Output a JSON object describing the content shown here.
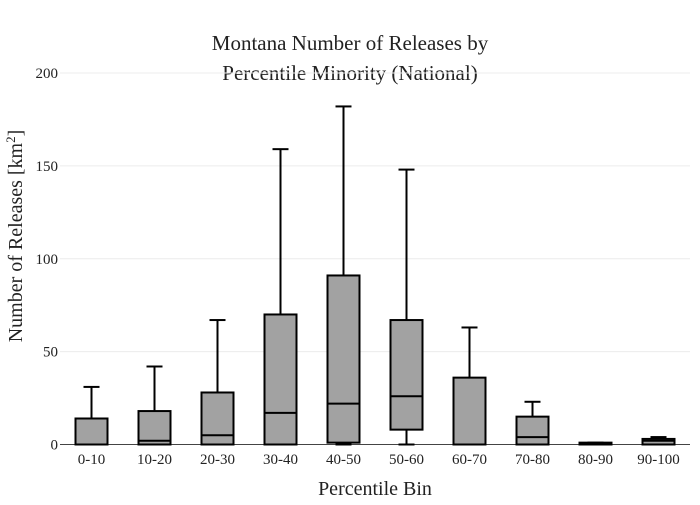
{
  "chart_data": {
    "type": "box",
    "title_lines": [
      "Montana Number of Releases by",
      "Percentile Minority (National)"
    ],
    "xlabel": "Percentile Bin",
    "ylabel_text": "Number of Releases ",
    "ylabel_unit_base": "[km",
    "ylabel_unit_sup": "2",
    "ylabel_unit_end": "]",
    "ylim": [
      0,
      200
    ],
    "yticks": [
      0,
      50,
      100,
      150,
      200
    ],
    "grid": true,
    "categories": [
      "0-10",
      "10-20",
      "20-30",
      "30-40",
      "40-50",
      "50-60",
      "60-70",
      "70-80",
      "80-90",
      "90-100"
    ],
    "boxes": [
      {
        "lower_whisker": 0,
        "q1": 0,
        "median": 0,
        "q3": 14,
        "upper_whisker": 31
      },
      {
        "lower_whisker": 0,
        "q1": 0,
        "median": 2,
        "q3": 18,
        "upper_whisker": 42
      },
      {
        "lower_whisker": 0,
        "q1": 0,
        "median": 5,
        "q3": 28,
        "upper_whisker": 67
      },
      {
        "lower_whisker": 0,
        "q1": 0,
        "median": 17,
        "q3": 70,
        "upper_whisker": 159
      },
      {
        "lower_whisker": 0,
        "q1": 1,
        "median": 22,
        "q3": 91,
        "upper_whisker": 182
      },
      {
        "lower_whisker": 0,
        "q1": 8,
        "median": 26,
        "q3": 67,
        "upper_whisker": 148
      },
      {
        "lower_whisker": 0,
        "q1": 0,
        "median": 0,
        "q3": 36,
        "upper_whisker": 63
      },
      {
        "lower_whisker": 0,
        "q1": 0,
        "median": 4,
        "q3": 15,
        "upper_whisker": 23
      },
      {
        "lower_whisker": 0,
        "q1": 0,
        "median": 0,
        "q3": 1,
        "upper_whisker": 1
      },
      {
        "lower_whisker": 0,
        "q1": 0,
        "median": 2,
        "q3": 3,
        "upper_whisker": 4
      }
    ],
    "box_color": "#a2a2a2",
    "line_color": "#000000"
  }
}
